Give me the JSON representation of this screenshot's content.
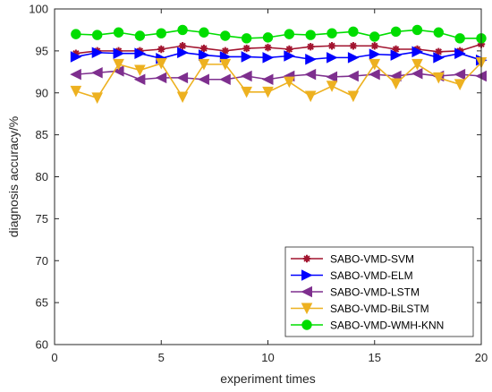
{
  "chart_data": {
    "type": "line",
    "xlabel": "experiment times",
    "ylabel": "diagnosis accuracy/%",
    "xlim": [
      0,
      20
    ],
    "ylim": [
      60,
      100
    ],
    "xticks": [
      0,
      5,
      10,
      15,
      20
    ],
    "yticks": [
      60,
      65,
      70,
      75,
      80,
      85,
      90,
      95,
      100
    ],
    "grid": false,
    "legend_position": "bottom-right",
    "x": [
      1,
      2,
      3,
      4,
      5,
      6,
      7,
      8,
      9,
      10,
      11,
      12,
      13,
      14,
      15,
      16,
      17,
      18,
      19,
      20
    ],
    "series": [
      {
        "name": "SABO-VMD-SVM",
        "color": "#A2142F",
        "marker": "asterisk",
        "values": [
          94.7,
          95.0,
          95.0,
          95.0,
          95.2,
          95.6,
          95.3,
          95.0,
          95.3,
          95.4,
          95.2,
          95.5,
          95.6,
          95.6,
          95.6,
          95.2,
          95.2,
          94.9,
          95.0,
          95.8
        ]
      },
      {
        "name": "SABO-VMD-ELM",
        "color": "#0000FF",
        "marker": "triangle-right",
        "values": [
          94.3,
          94.8,
          94.7,
          94.7,
          94.1,
          94.8,
          94.5,
          94.3,
          94.3,
          94.2,
          94.4,
          94.0,
          94.2,
          94.2,
          94.6,
          94.5,
          94.9,
          94.2,
          94.7,
          93.9
        ]
      },
      {
        "name": "SABO-VMD-LSTM",
        "color": "#7E2F8E",
        "marker": "triangle-left",
        "values": [
          92.2,
          92.4,
          92.6,
          91.6,
          91.8,
          91.8,
          91.6,
          91.6,
          92.0,
          91.6,
          92.0,
          92.2,
          91.9,
          92.0,
          92.2,
          92.0,
          92.3,
          92.0,
          92.2,
          92.0
        ]
      },
      {
        "name": "SABO-VMD-BiLSTM",
        "color": "#EDB120",
        "marker": "triangle-down",
        "values": [
          90.2,
          89.4,
          93.4,
          92.7,
          93.5,
          89.5,
          93.4,
          93.4,
          90.1,
          90.1,
          91.3,
          89.6,
          90.8,
          89.6,
          93.4,
          91.1,
          93.4,
          91.8,
          91.0,
          93.6
        ]
      },
      {
        "name": "SABO-VMD-WMH-KNN",
        "color": "#00DD00",
        "marker": "circle",
        "values": [
          97.0,
          96.9,
          97.2,
          96.8,
          97.1,
          97.5,
          97.2,
          96.8,
          96.5,
          96.6,
          97.0,
          96.9,
          97.1,
          97.3,
          96.7,
          97.3,
          97.5,
          97.2,
          96.5,
          96.5
        ]
      }
    ]
  }
}
